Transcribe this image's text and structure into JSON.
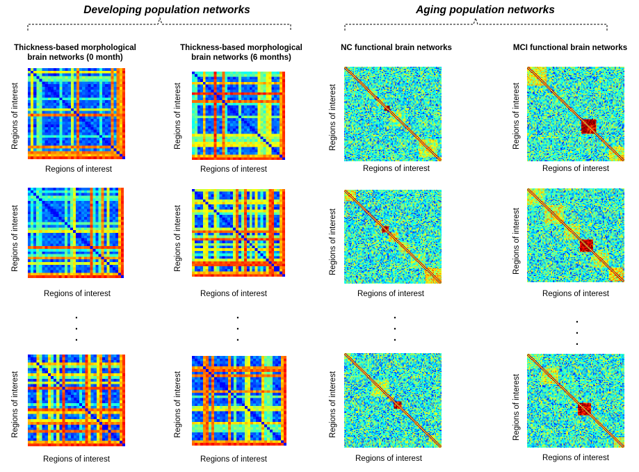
{
  "groups": {
    "developing": {
      "title": "Developing population networks"
    },
    "aging": {
      "title": "Aging population networks"
    }
  },
  "columns": [
    {
      "header_line1": "Thickness-based morphological",
      "header_line2": "brain networks (0 month)",
      "kind": "morphological"
    },
    {
      "header_line1": "Thickness-based morphological",
      "header_line2": "brain networks (6 months)",
      "kind": "morphological"
    },
    {
      "header_line1": "NC functional brain networks",
      "header_line2": "",
      "kind": "functional"
    },
    {
      "header_line1": "MCI functional brain networks",
      "header_line2": "",
      "kind": "functional"
    }
  ],
  "axis": {
    "x_label": "Regions of interest",
    "y_label": "Regions of interest"
  },
  "ellipsis": ".",
  "colormap": "jet",
  "colors": {
    "background": "#ffffff",
    "brace": "#000000",
    "text": "#000000"
  }
}
